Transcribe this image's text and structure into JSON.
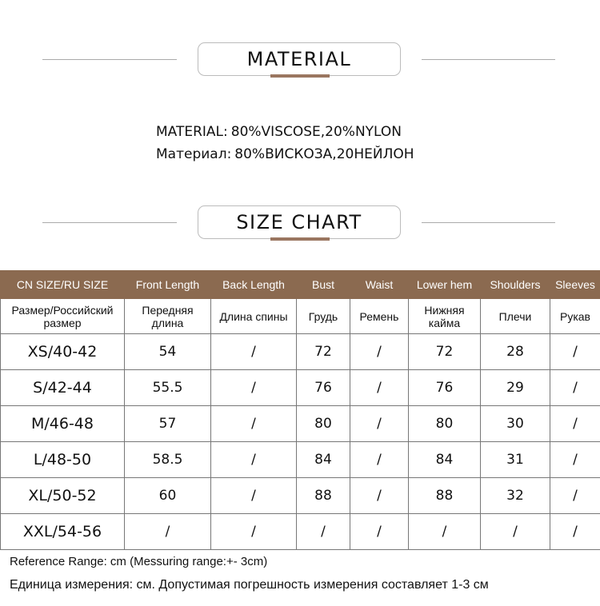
{
  "material_section": {
    "title": "MATERIAL",
    "line_en_label": "MATERIAL:",
    "line_en_value": "80%VISCOSE,20%NYLON",
    "line_ru_label": "Материал:",
    "line_ru_value": "80%ВИСКОЗА,20НЕЙЛОН"
  },
  "size_section": {
    "title": "SIZE CHART"
  },
  "accent_color": "#8b6a50",
  "table": {
    "headers_en": [
      "CN SIZE/RU SIZE",
      "Front Length",
      "Back Length",
      "Bust",
      "Waist",
      "Lower hem",
      "Shoulders",
      "Sleeves"
    ],
    "headers_ru": [
      "Размер/Российский размер",
      "Передняя длина",
      "Длина спины",
      "Грудь",
      "Ремень",
      "Нижняя кайма",
      "Плечи",
      "Рукав"
    ],
    "rows": [
      [
        "XS/40-42",
        "54",
        "/",
        "72",
        "/",
        "72",
        "28",
        "/"
      ],
      [
        "S/42-44",
        "55.5",
        "/",
        "76",
        "/",
        "76",
        "29",
        "/"
      ],
      [
        "M/46-48",
        "57",
        "/",
        "80",
        "/",
        "80",
        "30",
        "/"
      ],
      [
        "L/48-50",
        "58.5",
        "/",
        "84",
        "/",
        "84",
        "31",
        "/"
      ],
      [
        "XL/50-52",
        "60",
        "/",
        "88",
        "/",
        "88",
        "32",
        "/"
      ],
      [
        "XXL/54-56",
        "/",
        "/",
        "/",
        "/",
        "/",
        "/",
        "/"
      ]
    ]
  },
  "notes": {
    "en": "Reference Range: cm (Messuring range:+- 3cm)",
    "ru": "Единица измерения: см. Допустимая погрешность измерения составляет 1-3 см"
  }
}
